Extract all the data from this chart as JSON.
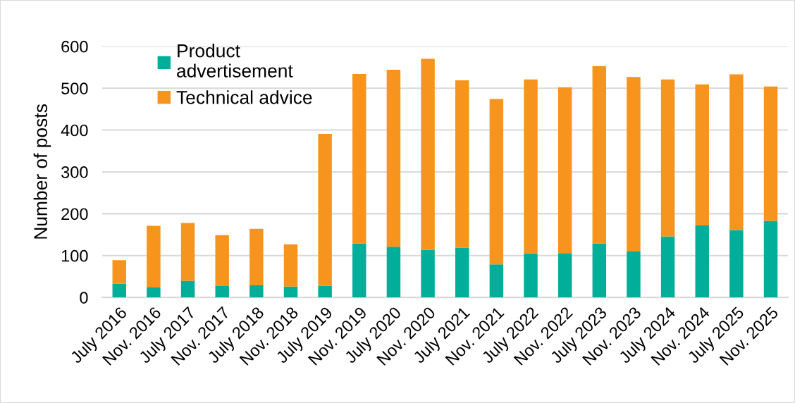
{
  "chart_data": {
    "type": "bar",
    "stacked": true,
    "ylabel": "Number of posts",
    "categories": [
      "July 2016",
      "Nov. 2016",
      "July 2017",
      "Nov. 2017",
      "July 2018",
      "Nov. 2018",
      "July 2019",
      "Nov. 2019",
      "July 2020",
      "Nov. 2020",
      "July 2021",
      "Nov. 2021",
      "July 2022",
      "Nov. 2022",
      "July 2023",
      "Nov. 2023",
      "July 2024",
      "Nov. 2024",
      "July 2025",
      "Nov. 2025"
    ],
    "series": [
      {
        "name": "Product\nadvertisement",
        "color": "#00ae9a",
        "values": [
          33,
          24,
          40,
          27,
          29,
          26,
          28,
          129,
          121,
          114,
          119,
          79,
          105,
          106,
          129,
          111,
          146,
          172,
          161,
          183
        ]
      },
      {
        "name": "Technical advice",
        "color": "#f7941d",
        "values": [
          56,
          147,
          138,
          122,
          135,
          101,
          363,
          405,
          423,
          456,
          400,
          395,
          416,
          396,
          424,
          416,
          375,
          337,
          372,
          321
        ]
      }
    ],
    "ylim": [
      0,
      600
    ],
    "yticks": [
      0,
      100,
      200,
      300,
      400,
      500,
      600
    ],
    "grid": "y",
    "legend": "top left"
  }
}
